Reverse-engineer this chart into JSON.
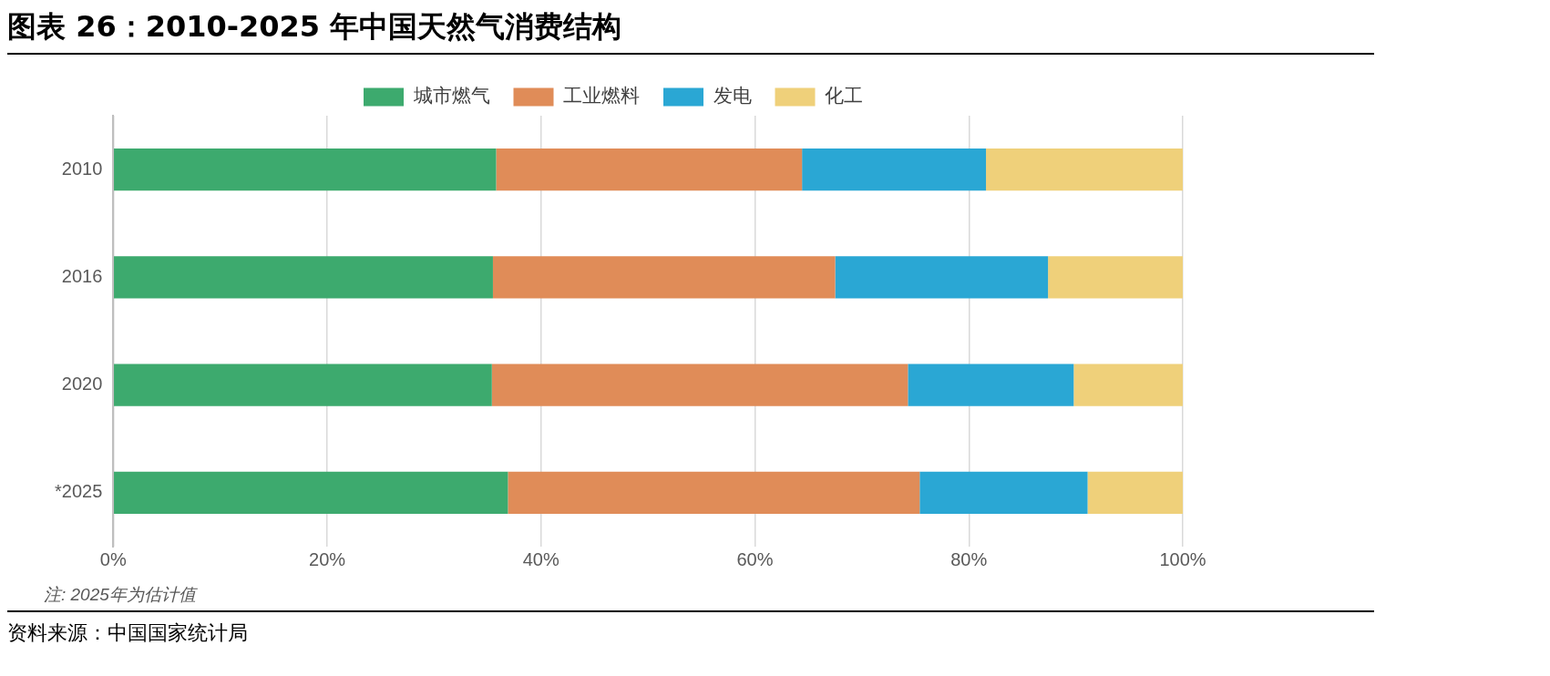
{
  "chart_data": {
    "type": "bar",
    "title": "图表 26：2010-2025 年中国天然气消费结构",
    "orientation": "horizontal",
    "stacked": true,
    "categories": [
      "2010",
      "2016",
      "2020",
      "*2025"
    ],
    "series": [
      {
        "name": "城市燃气",
        "color": "#3daa6e",
        "values": [
          35.8,
          35.5,
          35.4,
          36.9
        ]
      },
      {
        "name": "工业燃料",
        "color": "#e08c58",
        "values": [
          28.6,
          32.0,
          38.9,
          38.5
        ]
      },
      {
        "name": "发电",
        "color": "#2aa7d4",
        "values": [
          17.2,
          19.9,
          15.5,
          15.7
        ]
      },
      {
        "name": "化工",
        "color": "#efd07a",
        "values": [
          18.4,
          12.6,
          10.2,
          8.9
        ]
      }
    ],
    "xlim": [
      0,
      100
    ],
    "xticks": [
      {
        "value": 0,
        "label": "0%"
      },
      {
        "value": 20,
        "label": "20%"
      },
      {
        "value": 40,
        "label": "40%"
      },
      {
        "value": 60,
        "label": "60%"
      },
      {
        "value": 80,
        "label": "80%"
      },
      {
        "value": 100,
        "label": "100%"
      }
    ],
    "grid": "x",
    "legend": "top",
    "annotations": [
      "注: 2025年为估计值",
      "资料来源：中国国家统计局"
    ]
  }
}
